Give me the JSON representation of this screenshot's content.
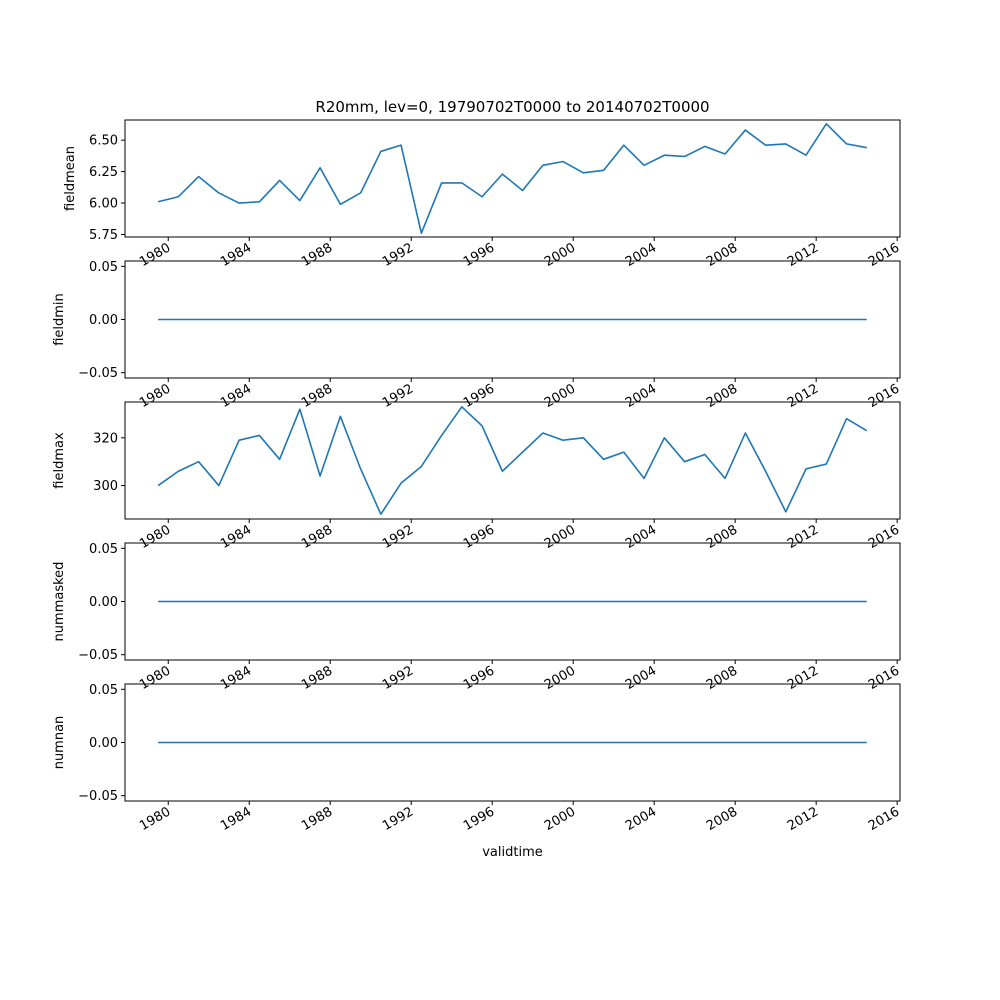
{
  "chart_data": {
    "type": "line",
    "title": "R20mm, lev=0, 19790702T0000 to 20140702T0000",
    "xlabel": "validtime",
    "line_color": "#1f77b4",
    "x": [
      "1979-07-02",
      "1980-07-02",
      "1981-07-02",
      "1982-07-02",
      "1983-07-02",
      "1984-07-02",
      "1985-07-02",
      "1986-07-02",
      "1987-07-02",
      "1988-07-02",
      "1989-07-02",
      "1990-07-02",
      "1991-07-02",
      "1992-07-02",
      "1993-07-02",
      "1994-07-02",
      "1995-07-02",
      "1996-07-02",
      "1997-07-02",
      "1998-07-02",
      "1999-07-02",
      "2000-07-02",
      "2001-07-02",
      "2002-07-02",
      "2003-07-02",
      "2004-07-02",
      "2005-07-02",
      "2006-07-02",
      "2007-07-02",
      "2008-07-02",
      "2009-07-02",
      "2010-07-02",
      "2011-07-02",
      "2012-07-02",
      "2013-07-02",
      "2014-07-02"
    ],
    "xlim": [
      "1977-11-12",
      "2016-02-21"
    ],
    "x_ticks": [
      "1980",
      "1984",
      "1988",
      "1992",
      "1996",
      "2000",
      "2004",
      "2008",
      "2012",
      "2016"
    ],
    "panels": [
      {
        "ylabel": "fieldmean",
        "ylim": [
          5.73,
          6.66
        ],
        "y_ticks": [
          "5.75",
          "6.00",
          "6.25",
          "6.50"
        ],
        "y_tick_values": [
          5.75,
          6.0,
          6.25,
          6.5
        ],
        "values": [
          6.01,
          6.05,
          6.21,
          6.08,
          6.0,
          6.01,
          6.18,
          6.02,
          6.28,
          5.99,
          6.08,
          6.41,
          6.46,
          5.76,
          6.16,
          6.16,
          6.05,
          6.23,
          6.1,
          6.3,
          6.33,
          6.24,
          6.26,
          6.46,
          6.3,
          6.38,
          6.37,
          6.45,
          6.39,
          6.58,
          6.46,
          6.47,
          6.38,
          6.63,
          6.47,
          6.44
        ]
      },
      {
        "ylabel": "fieldmin",
        "ylim": [
          -0.055,
          0.055
        ],
        "y_ticks": [
          "−0.05",
          "0.00",
          "0.05"
        ],
        "y_tick_values": [
          -0.05,
          0.0,
          0.05
        ],
        "values": [
          0,
          0,
          0,
          0,
          0,
          0,
          0,
          0,
          0,
          0,
          0,
          0,
          0,
          0,
          0,
          0,
          0,
          0,
          0,
          0,
          0,
          0,
          0,
          0,
          0,
          0,
          0,
          0,
          0,
          0,
          0,
          0,
          0,
          0,
          0,
          0
        ]
      },
      {
        "ylabel": "fieldmax",
        "ylim": [
          286,
          335
        ],
        "y_ticks": [
          "300",
          "320"
        ],
        "y_tick_values": [
          300,
          320
        ],
        "values": [
          300,
          306,
          310,
          300,
          319,
          321,
          311,
          332,
          304,
          329,
          307,
          288,
          301,
          308,
          321,
          333,
          325,
          306,
          314,
          322,
          319,
          320,
          311,
          314,
          303,
          320,
          310,
          313,
          303,
          322,
          306,
          289,
          307,
          309,
          328,
          323
        ]
      },
      {
        "ylabel": "nummasked",
        "ylim": [
          -0.055,
          0.055
        ],
        "y_ticks": [
          "−0.05",
          "0.00",
          "0.05"
        ],
        "y_tick_values": [
          -0.05,
          0.0,
          0.05
        ],
        "values": [
          0,
          0,
          0,
          0,
          0,
          0,
          0,
          0,
          0,
          0,
          0,
          0,
          0,
          0,
          0,
          0,
          0,
          0,
          0,
          0,
          0,
          0,
          0,
          0,
          0,
          0,
          0,
          0,
          0,
          0,
          0,
          0,
          0,
          0,
          0,
          0
        ]
      },
      {
        "ylabel": "numnan",
        "ylim": [
          -0.055,
          0.055
        ],
        "y_ticks": [
          "−0.05",
          "0.00",
          "0.05"
        ],
        "y_tick_values": [
          -0.05,
          0.0,
          0.05
        ],
        "values": [
          0,
          0,
          0,
          0,
          0,
          0,
          0,
          0,
          0,
          0,
          0,
          0,
          0,
          0,
          0,
          0,
          0,
          0,
          0,
          0,
          0,
          0,
          0,
          0,
          0,
          0,
          0,
          0,
          0,
          0,
          0,
          0,
          0,
          0,
          0,
          0
        ]
      }
    ]
  }
}
